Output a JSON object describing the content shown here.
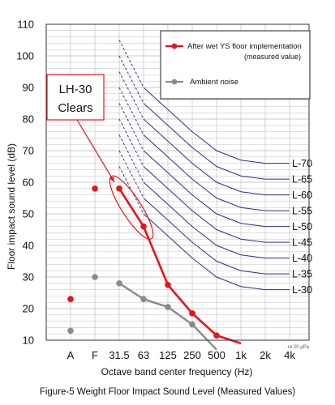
{
  "chart_data": {
    "type": "line",
    "title": "",
    "caption": "Figure-5 Weight Floor Impact Sound Level (Measured Values)",
    "xlabel": "Octave band center frequency (Hz)",
    "ylabel": "Floor impact sound level (dB)",
    "ylim": [
      10,
      110
    ],
    "yticks": [
      10,
      20,
      30,
      40,
      50,
      60,
      70,
      80,
      90,
      100,
      110
    ],
    "categories": [
      "A",
      "F",
      "31.5",
      "63",
      "125",
      "250",
      "500",
      "1k",
      "2k",
      "4k"
    ],
    "grid": true,
    "reference_note": "re:20 μPa",
    "callout": {
      "line1": "LH-30",
      "line2": "Clears"
    },
    "legend": {
      "position": "top-right"
    },
    "colors": {
      "measured": "#e8131b",
      "ambient": "#8a8a8a",
      "curves": "#2e2e8c",
      "grid": "#b8b8b8"
    },
    "series": [
      {
        "name": "After wet YS floor implementation",
        "name_line2": "(measured value)",
        "single_points": {
          "A": 23,
          "F": 58
        },
        "line_values": [
          null,
          null,
          58,
          46,
          27.5,
          18.5,
          11.5,
          9,
          null,
          null
        ]
      },
      {
        "name": "Ambient noise",
        "single_points": {
          "A": 13,
          "F": 30
        },
        "line_values": [
          null,
          null,
          28,
          23,
          20.5,
          15,
          7,
          null,
          null,
          null
        ]
      }
    ],
    "reference_curves": [
      {
        "name": "L-70",
        "values": [
          null,
          null,
          105,
          90,
          83,
          76,
          70,
          67,
          66,
          66
        ]
      },
      {
        "name": "L-65",
        "values": [
          null,
          null,
          100,
          85,
          78,
          71,
          65,
          62,
          61,
          61
        ]
      },
      {
        "name": "L-60",
        "values": [
          null,
          null,
          95,
          80,
          73,
          66,
          60,
          57,
          56,
          56
        ]
      },
      {
        "name": "L-55",
        "values": [
          null,
          null,
          90,
          75,
          68,
          61,
          55,
          52,
          51,
          51
        ]
      },
      {
        "name": "L-50",
        "values": [
          null,
          null,
          85,
          70,
          63,
          56,
          50,
          47,
          46,
          46
        ]
      },
      {
        "name": "L-45",
        "values": [
          null,
          null,
          80,
          65,
          58,
          51,
          45,
          42,
          41,
          41
        ]
      },
      {
        "name": "L-40",
        "values": [
          null,
          null,
          75,
          60,
          53,
          46,
          40,
          37,
          36,
          36
        ]
      },
      {
        "name": "L-35",
        "values": [
          null,
          null,
          70,
          55,
          48,
          41,
          35,
          32,
          31,
          31
        ]
      },
      {
        "name": "L-30",
        "values": [
          null,
          null,
          65,
          50,
          43,
          36,
          30,
          27,
          26,
          26
        ]
      }
    ]
  }
}
